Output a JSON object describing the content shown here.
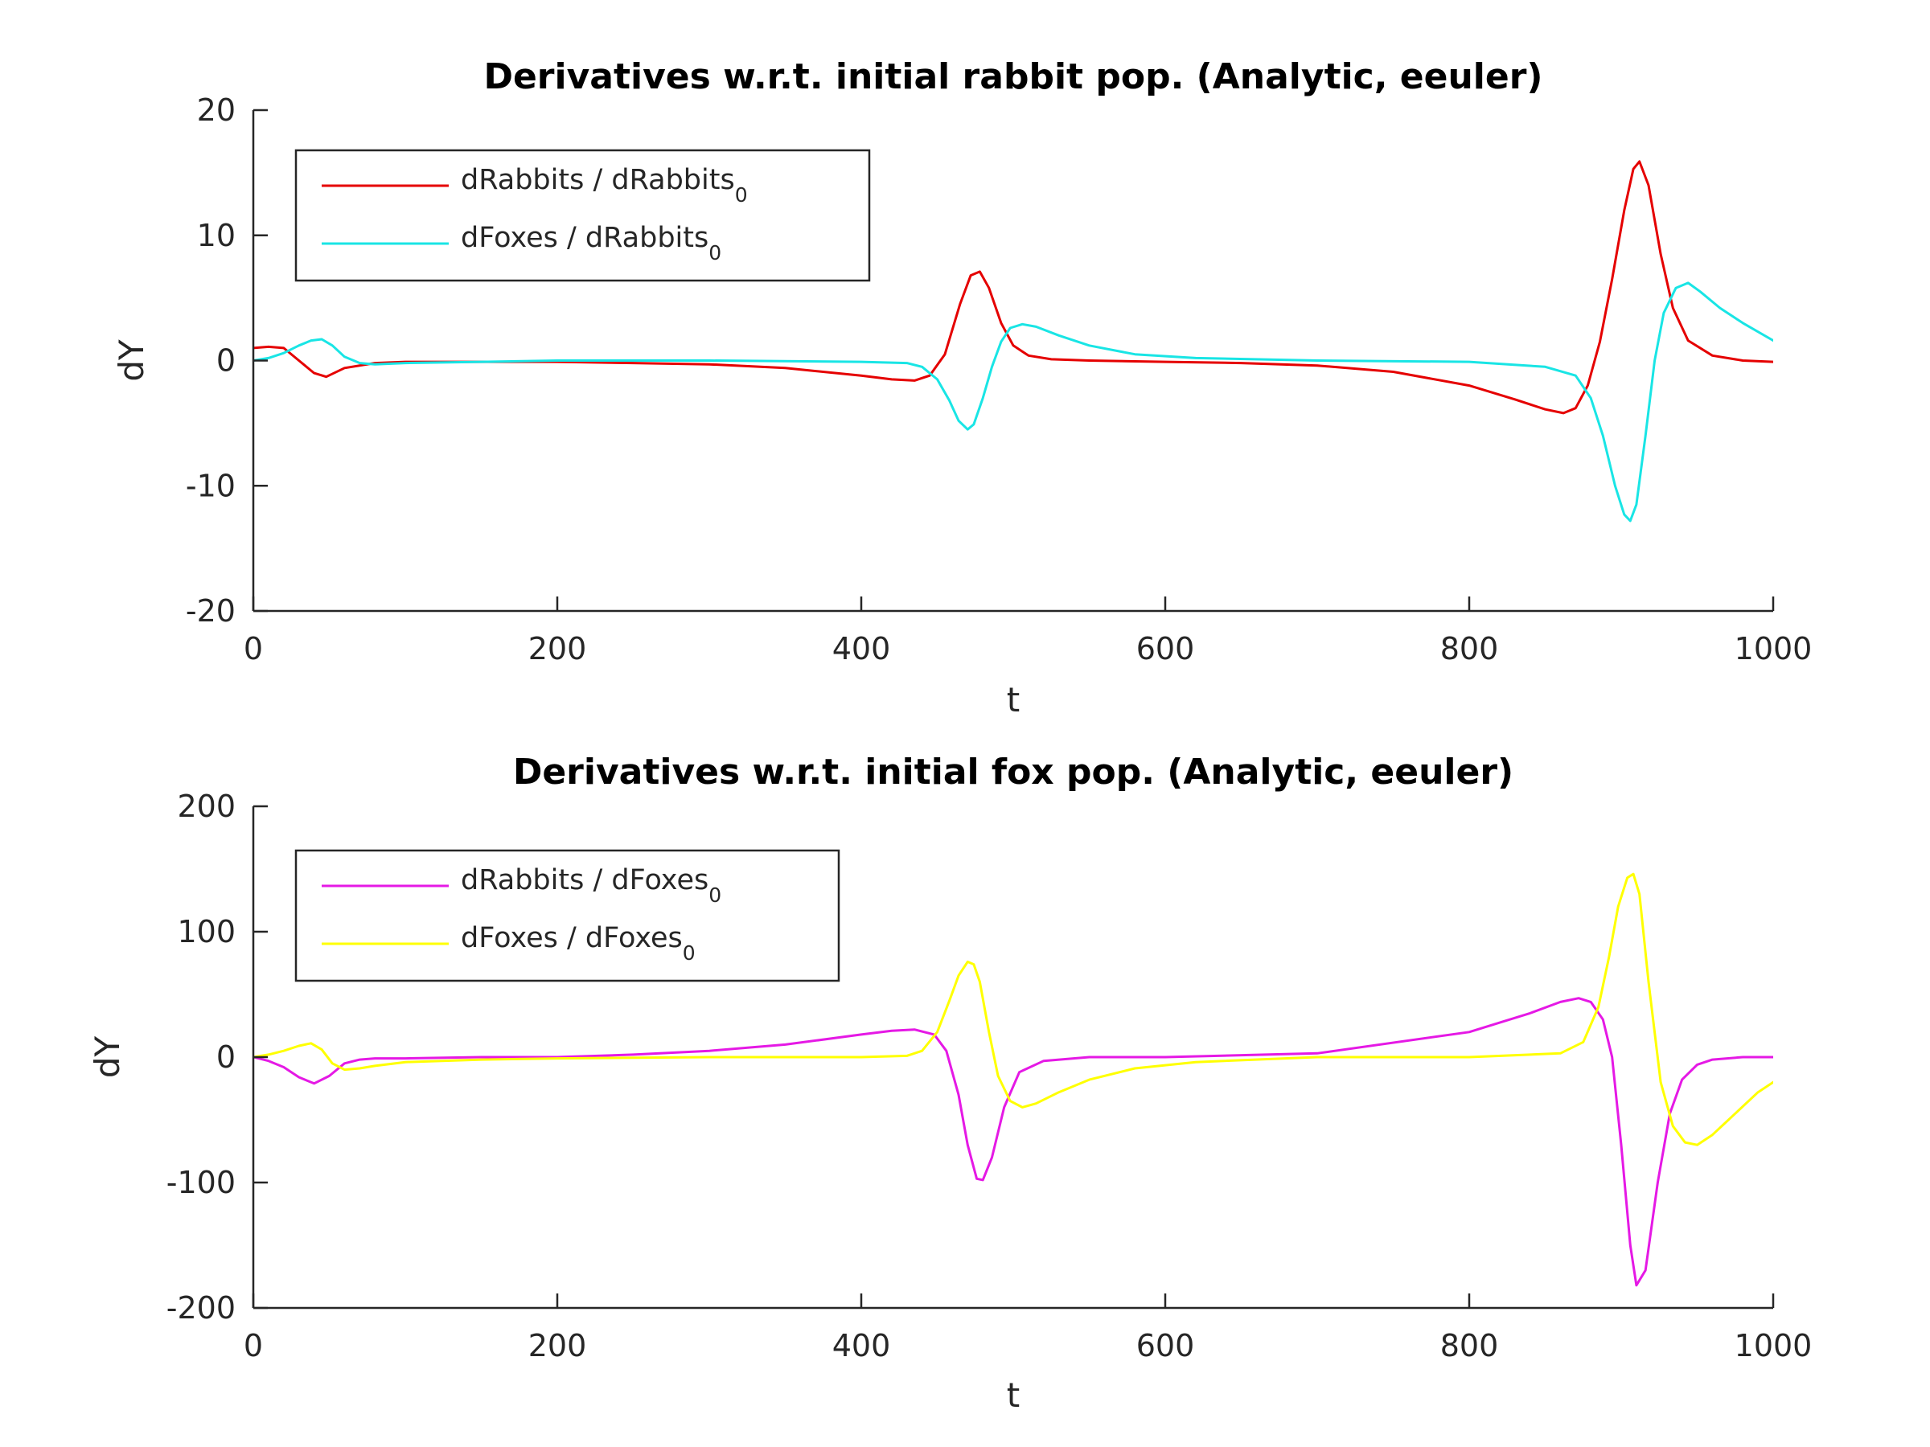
{
  "chart_data": [
    {
      "type": "line",
      "title": "Derivatives w.r.t. initial rabbit pop. (Analytic, eeuler)",
      "xlabel": "t",
      "ylabel": "dY",
      "xlim": [
        0,
        1000
      ],
      "ylim": [
        -20,
        20
      ],
      "xticks": [
        0,
        200,
        400,
        600,
        800,
        1000
      ],
      "yticks": [
        20,
        10,
        0,
        -10,
        -20
      ],
      "grid": false,
      "legend_position": "top-left",
      "series": [
        {
          "name": "dRabbits / dRabbits",
          "name_subscript": "0",
          "color": "#e50000",
          "x": [
            0,
            10,
            20,
            30,
            40,
            48,
            60,
            80,
            100,
            150,
            200,
            250,
            300,
            350,
            400,
            420,
            435,
            445,
            455,
            465,
            472,
            478,
            484,
            492,
            500,
            510,
            525,
            550,
            600,
            650,
            700,
            750,
            800,
            830,
            850,
            862,
            870,
            878,
            886,
            894,
            902,
            908,
            912,
            918,
            926,
            934,
            944,
            960,
            980,
            1000
          ],
          "y": [
            1.0,
            1.1,
            1.0,
            0.0,
            -1.0,
            -1.3,
            -0.6,
            -0.2,
            -0.1,
            -0.1,
            -0.1,
            -0.2,
            -0.3,
            -0.6,
            -1.2,
            -1.5,
            -1.6,
            -1.2,
            0.5,
            4.5,
            6.8,
            7.1,
            5.8,
            3.0,
            1.2,
            0.4,
            0.1,
            0.0,
            -0.1,
            -0.2,
            -0.4,
            -0.9,
            -2.0,
            -3.1,
            -3.9,
            -4.2,
            -3.8,
            -2.0,
            1.5,
            6.5,
            12.0,
            15.3,
            15.9,
            14.0,
            8.5,
            4.2,
            1.6,
            0.4,
            0.0,
            -0.1
          ]
        },
        {
          "name": "dFoxes / dRabbits",
          "name_subscript": "0",
          "color": "#19e5e5",
          "x": [
            0,
            10,
            20,
            30,
            38,
            45,
            52,
            60,
            70,
            80,
            100,
            150,
            200,
            300,
            400,
            430,
            440,
            450,
            458,
            464,
            470,
            474,
            480,
            486,
            492,
            498,
            506,
            515,
            530,
            550,
            580,
            620,
            700,
            800,
            850,
            870,
            880,
            888,
            896,
            902,
            906,
            910,
            916,
            922,
            928,
            936,
            944,
            952,
            965,
            980,
            1000
          ],
          "y": [
            0.0,
            0.2,
            0.6,
            1.2,
            1.6,
            1.7,
            1.2,
            0.3,
            -0.2,
            -0.3,
            -0.2,
            -0.1,
            0.0,
            0.0,
            -0.1,
            -0.2,
            -0.5,
            -1.5,
            -3.2,
            -4.8,
            -5.5,
            -5.1,
            -3.0,
            -0.5,
            1.5,
            2.6,
            2.9,
            2.7,
            2.0,
            1.2,
            0.5,
            0.2,
            0.0,
            -0.1,
            -0.5,
            -1.2,
            -3.0,
            -6.0,
            -10.0,
            -12.3,
            -12.8,
            -11.5,
            -6.0,
            0.0,
            3.8,
            5.8,
            6.2,
            5.5,
            4.2,
            3.0,
            1.6
          ]
        }
      ]
    },
    {
      "type": "line",
      "title": "Derivatives w.r.t. initial fox pop. (Analytic, eeuler)",
      "xlabel": "t",
      "ylabel": "dY",
      "xlim": [
        0,
        1000
      ],
      "ylim": [
        -200,
        200
      ],
      "xticks": [
        0,
        200,
        400,
        600,
        800,
        1000
      ],
      "yticks": [
        200,
        100,
        0,
        -100,
        -200
      ],
      "grid": false,
      "legend_position": "top-left",
      "series": [
        {
          "name": "dRabbits / dFoxes",
          "name_subscript": "0",
          "color": "#e519e5",
          "x": [
            0,
            10,
            20,
            30,
            40,
            50,
            60,
            70,
            80,
            100,
            150,
            200,
            250,
            300,
            350,
            400,
            420,
            435,
            448,
            456,
            464,
            470,
            476,
            480,
            486,
            494,
            504,
            520,
            550,
            600,
            700,
            800,
            840,
            860,
            872,
            880,
            888,
            894,
            900,
            906,
            910,
            916,
            924,
            932,
            940,
            950,
            960,
            980,
            1000
          ],
          "y": [
            0,
            -3,
            -8,
            -16,
            -21,
            -15,
            -5,
            -2,
            -1,
            -1,
            0,
            0,
            2,
            5,
            10,
            18,
            21,
            22,
            18,
            5,
            -30,
            -70,
            -97,
            -98,
            -80,
            -40,
            -12,
            -3,
            0,
            0,
            3,
            20,
            35,
            44,
            47,
            44,
            30,
            0,
            -70,
            -150,
            -182,
            -170,
            -100,
            -45,
            -18,
            -6,
            -2,
            0,
            0
          ]
        },
        {
          "name": "dFoxes / dFoxes",
          "name_subscript": "0",
          "color": "#ffff00",
          "x": [
            0,
            10,
            20,
            30,
            38,
            45,
            52,
            60,
            70,
            80,
            100,
            150,
            200,
            300,
            400,
            430,
            440,
            450,
            458,
            464,
            470,
            474,
            478,
            484,
            490,
            498,
            506,
            515,
            530,
            550,
            580,
            620,
            700,
            800,
            860,
            875,
            885,
            892,
            898,
            904,
            908,
            912,
            918,
            926,
            934,
            942,
            950,
            960,
            975,
            990,
            1000
          ],
          "y": [
            0,
            2,
            5,
            9,
            11,
            6,
            -5,
            -10,
            -9,
            -7,
            -4,
            -2,
            -1,
            0,
            0,
            1,
            5,
            20,
            45,
            65,
            76,
            74,
            60,
            20,
            -15,
            -35,
            -40,
            -37,
            -28,
            -18,
            -9,
            -4,
            0,
            0,
            3,
            12,
            40,
            80,
            120,
            143,
            146,
            130,
            60,
            -20,
            -55,
            -68,
            -70,
            -62,
            -45,
            -28,
            -20
          ]
        }
      ]
    }
  ]
}
